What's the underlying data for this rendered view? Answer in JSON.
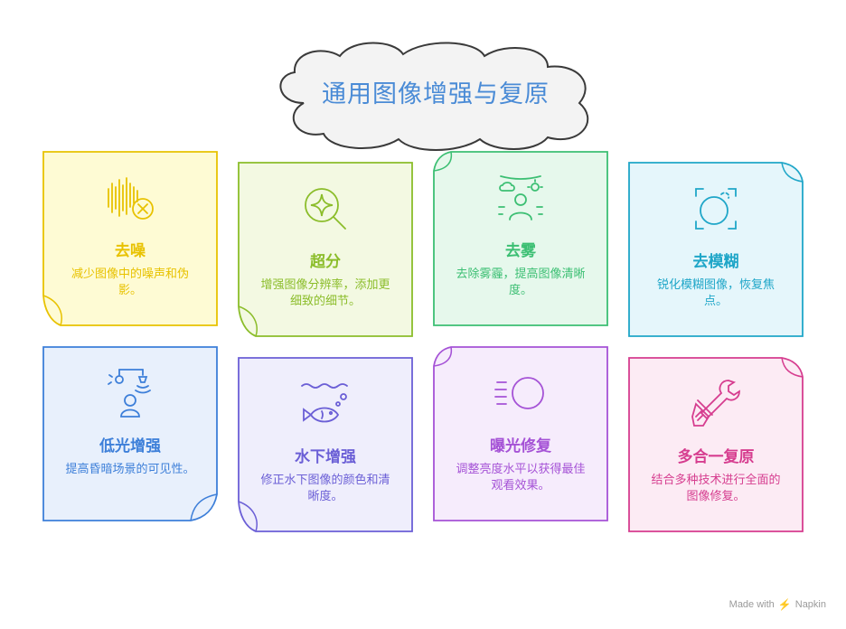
{
  "title": "通用图像增强与复原",
  "cards": [
    {
      "title": "去噪",
      "desc": "减少图像中的噪声和伪影。",
      "color": "#e8c200",
      "fill": "#fefbd4",
      "icon": "waveform-x-icon"
    },
    {
      "title": "超分",
      "desc": "增强图像分辨率，添加更细致的细节。",
      "color": "#8bbd2a",
      "fill": "#f3f9e2",
      "icon": "sparkle-magnifier-icon"
    },
    {
      "title": "去雾",
      "desc": "去除雾霾，提高图像清晰度。",
      "color": "#3cbf73",
      "fill": "#e6f8ec",
      "icon": "person-weather-icon"
    },
    {
      "title": "去模糊",
      "desc": "锐化模糊图像，恢复焦点。",
      "color": "#1fa6c8",
      "fill": "#e5f6fb",
      "icon": "focus-circle-icon"
    },
    {
      "title": "低光增强",
      "desc": "提高昏暗场景的可见性。",
      "color": "#3d7fd9",
      "fill": "#e8f0fc",
      "icon": "lamp-person-icon"
    },
    {
      "title": "水下增强",
      "desc": "修正水下图像的颜色和清晰度。",
      "color": "#6b5fd6",
      "fill": "#efeefc",
      "icon": "fish-water-icon"
    },
    {
      "title": "曝光修复",
      "desc": "调整亮度水平以获得最佳观看效果。",
      "color": "#a552d6",
      "fill": "#f6ecfc",
      "icon": "sun-lines-icon"
    },
    {
      "title": "多合一复原",
      "desc": "结合多种技术进行全面的图像修复。",
      "color": "#d63d8f",
      "fill": "#fcebf4",
      "icon": "wrench-tools-icon"
    }
  ],
  "footer": {
    "made_with": "Made with",
    "brand": "Napkin"
  }
}
